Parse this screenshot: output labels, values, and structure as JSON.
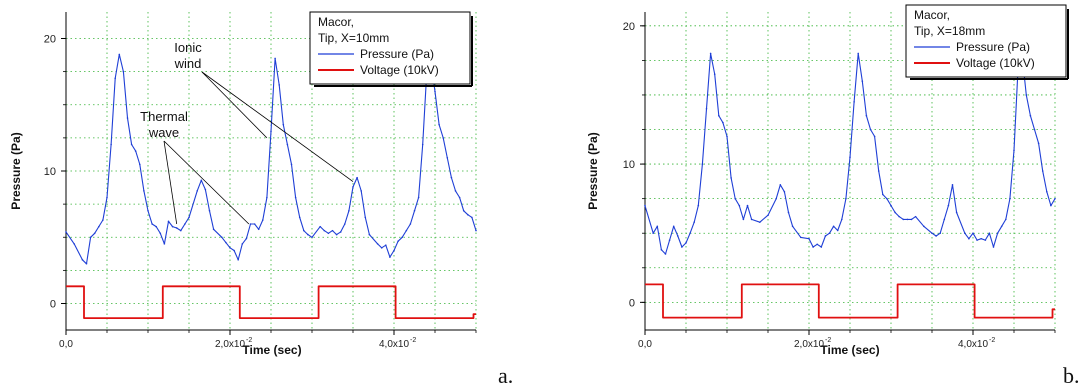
{
  "chart_data": [
    {
      "type": "line",
      "panel_label": "a.",
      "xlabel": "Time (sec)",
      "ylabel": "Pressure (Pa)",
      "xlim": [
        0,
        0.05
      ],
      "ylim": [
        -2,
        22
      ],
      "xticks": [
        {
          "v": 0,
          "label": "0,0"
        },
        {
          "v": 0.02,
          "label": "2,0x10",
          "exp": "-2"
        },
        {
          "v": 0.04,
          "label": "4,0x10",
          "exp": "-2"
        }
      ],
      "yticks": [
        {
          "v": 0,
          "label": "0"
        },
        {
          "v": 10,
          "label": "10"
        },
        {
          "v": 20,
          "label": "20"
        }
      ],
      "grid": true,
      "legend": {
        "title_lines": [
          "Macor,",
          "Tip, X=10mm"
        ],
        "position": "top-right",
        "entries": [
          {
            "name": "Pressure (Pa)",
            "color": "#1f3fd6"
          },
          {
            "name": "Voltage (10kV)",
            "color": "#e01010"
          }
        ]
      },
      "annotations": [
        {
          "lines": [
            "Ionic",
            "wind"
          ],
          "points_to": [
            [
              0.0245,
              12.5
            ],
            [
              0.035,
              9.2
            ]
          ]
        },
        {
          "lines": [
            "Thermal",
            "wave"
          ],
          "points_to": [
            [
              0.0135,
              6.0
            ],
            [
              0.0223,
              6.0
            ]
          ]
        }
      ],
      "series": [
        {
          "name": "Pressure (Pa)",
          "color": "#1f3fd6",
          "x": [
            0.0,
            0.001,
            0.002,
            0.0025,
            0.003,
            0.0035,
            0.004,
            0.0045,
            0.005,
            0.0055,
            0.006,
            0.0065,
            0.007,
            0.0075,
            0.008,
            0.0085,
            0.009,
            0.0095,
            0.01,
            0.0105,
            0.011,
            0.0115,
            0.012,
            0.0125,
            0.013,
            0.0135,
            0.014,
            0.0145,
            0.015,
            0.016,
            0.0165,
            0.017,
            0.0175,
            0.018,
            0.019,
            0.0195,
            0.02,
            0.0205,
            0.021,
            0.0215,
            0.022,
            0.0225,
            0.023,
            0.0235,
            0.024,
            0.0245,
            0.025,
            0.0255,
            0.026,
            0.0265,
            0.027,
            0.0275,
            0.028,
            0.0285,
            0.029,
            0.0295,
            0.03,
            0.031,
            0.0315,
            0.032,
            0.0325,
            0.033,
            0.0335,
            0.034,
            0.0345,
            0.035,
            0.0355,
            0.036,
            0.0365,
            0.037,
            0.038,
            0.0385,
            0.039,
            0.0395,
            0.04,
            0.0405,
            0.041,
            0.0415,
            0.042,
            0.0425,
            0.043,
            0.0435,
            0.044,
            0.0445,
            0.045,
            0.0455,
            0.046,
            0.0465,
            0.047,
            0.0475,
            0.048,
            0.0485,
            0.049,
            0.0495,
            0.05
          ],
          "y": [
            5.4,
            4.5,
            3.3,
            3.0,
            5.0,
            5.3,
            5.8,
            6.3,
            8.0,
            12.0,
            17.0,
            18.8,
            17.5,
            14.0,
            12.0,
            11.5,
            10.5,
            8.5,
            7.0,
            6.0,
            5.8,
            5.3,
            4.5,
            6.2,
            5.8,
            5.7,
            5.5,
            6.0,
            6.5,
            8.5,
            9.3,
            8.6,
            7.0,
            5.6,
            5.0,
            4.6,
            4.2,
            4.0,
            3.3,
            4.5,
            4.9,
            6.0,
            6.0,
            5.6,
            6.3,
            8.0,
            13.0,
            18.5,
            16.5,
            13.5,
            12.0,
            10.5,
            8.0,
            6.5,
            5.5,
            5.2,
            5.0,
            5.8,
            5.5,
            5.3,
            5.5,
            5.2,
            5.4,
            6.0,
            7.0,
            8.8,
            9.5,
            8.5,
            6.5,
            5.2,
            4.5,
            4.2,
            4.4,
            3.5,
            4.0,
            4.7,
            5.0,
            5.5,
            6.0,
            7.0,
            8.0,
            12.0,
            17.5,
            18.2,
            16.0,
            13.5,
            12.5,
            11.0,
            9.5,
            8.5,
            8.0,
            7.0,
            6.7,
            6.5,
            5.5
          ]
        },
        {
          "name": "Voltage (10kV)",
          "color": "#e01010",
          "x": [
            0.0,
            0.0022,
            0.0022,
            0.0118,
            0.0118,
            0.0212,
            0.0212,
            0.0308,
            0.0308,
            0.0402,
            0.0402,
            0.0497,
            0.0497,
            0.05
          ],
          "y": [
            1.3,
            1.3,
            -1.1,
            -1.1,
            1.3,
            1.3,
            -1.1,
            -1.1,
            1.3,
            1.3,
            -1.1,
            -1.1,
            -0.8,
            -0.8
          ]
        }
      ]
    },
    {
      "type": "line",
      "panel_label": "b.",
      "xlabel": "Time (sec)",
      "ylabel": "Pressure (Pa)",
      "xlim": [
        0,
        0.05
      ],
      "ylim": [
        -2,
        21
      ],
      "xticks": [
        {
          "v": 0,
          "label": "0,0"
        },
        {
          "v": 0.02,
          "label": "2,0x10",
          "exp": "-2"
        },
        {
          "v": 0.04,
          "label": "4,0x10",
          "exp": "-2"
        }
      ],
      "yticks": [
        {
          "v": 0,
          "label": "0"
        },
        {
          "v": 10,
          "label": "10"
        },
        {
          "v": 20,
          "label": "20"
        }
      ],
      "grid": true,
      "legend": {
        "title_lines": [
          "Macor,",
          "Tip, X=18mm"
        ],
        "position": "top-right",
        "entries": [
          {
            "name": "Pressure (Pa)",
            "color": "#1f3fd6"
          },
          {
            "name": "Voltage (10kV)",
            "color": "#e01010"
          }
        ]
      },
      "series": [
        {
          "name": "Pressure (Pa)",
          "color": "#1f3fd6",
          "x": [
            0.0,
            0.001,
            0.0015,
            0.002,
            0.0025,
            0.003,
            0.0035,
            0.004,
            0.0045,
            0.005,
            0.0055,
            0.006,
            0.0065,
            0.007,
            0.0075,
            0.008,
            0.0085,
            0.009,
            0.0095,
            0.01,
            0.0105,
            0.011,
            0.0115,
            0.012,
            0.0125,
            0.013,
            0.014,
            0.015,
            0.016,
            0.0165,
            0.017,
            0.0175,
            0.018,
            0.019,
            0.02,
            0.0205,
            0.021,
            0.0215,
            0.022,
            0.0225,
            0.023,
            0.0235,
            0.024,
            0.0245,
            0.025,
            0.0255,
            0.026,
            0.0265,
            0.027,
            0.0275,
            0.028,
            0.0285,
            0.029,
            0.0295,
            0.03,
            0.0305,
            0.031,
            0.0315,
            0.032,
            0.0325,
            0.033,
            0.034,
            0.035,
            0.0355,
            0.036,
            0.0365,
            0.037,
            0.0375,
            0.038,
            0.039,
            0.0395,
            0.04,
            0.0405,
            0.041,
            0.0415,
            0.042,
            0.0425,
            0.043,
            0.0435,
            0.044,
            0.0445,
            0.045,
            0.0455,
            0.046,
            0.0465,
            0.047,
            0.0475,
            0.048,
            0.0485,
            0.049,
            0.0495,
            0.05
          ],
          "y": [
            7.0,
            5.0,
            5.5,
            3.8,
            3.5,
            4.5,
            5.5,
            4.8,
            4.0,
            4.3,
            5.0,
            5.8,
            7.0,
            10.0,
            14.0,
            18.0,
            16.5,
            13.5,
            13.0,
            12.0,
            9.0,
            7.5,
            7.0,
            6.0,
            7.0,
            6.0,
            5.8,
            6.3,
            7.5,
            8.5,
            8.0,
            6.5,
            5.5,
            4.7,
            4.6,
            4.0,
            4.2,
            4.0,
            4.8,
            5.0,
            5.5,
            5.2,
            6.0,
            7.5,
            10.5,
            14.5,
            18.0,
            16.0,
            13.5,
            12.5,
            12.0,
            9.5,
            7.8,
            7.5,
            7.0,
            6.5,
            6.2,
            6.0,
            6.0,
            6.0,
            6.2,
            5.5,
            5.0,
            4.8,
            5.0,
            6.0,
            7.0,
            8.5,
            6.5,
            5.0,
            4.6,
            5.0,
            4.5,
            4.6,
            4.5,
            5.0,
            4.0,
            5.0,
            5.5,
            6.0,
            7.5,
            11.0,
            17.0,
            17.8,
            15.0,
            13.5,
            12.5,
            11.5,
            9.5,
            8.0,
            7.0,
            7.5
          ]
        },
        {
          "name": "Voltage (10kV)",
          "color": "#e01010",
          "x": [
            0.0,
            0.0022,
            0.0022,
            0.0118,
            0.0118,
            0.0212,
            0.0212,
            0.0308,
            0.0308,
            0.0402,
            0.0402,
            0.0497,
            0.0497,
            0.05
          ],
          "y": [
            1.3,
            1.3,
            -1.1,
            -1.1,
            1.3,
            1.3,
            -1.1,
            -1.1,
            1.3,
            1.3,
            -1.1,
            -1.1,
            -0.5,
            -0.5
          ]
        }
      ]
    }
  ]
}
